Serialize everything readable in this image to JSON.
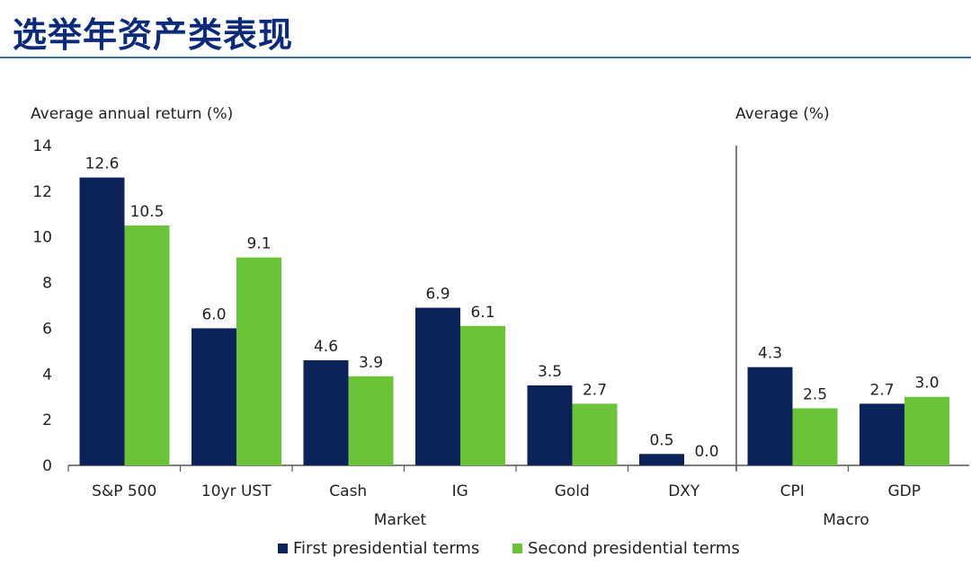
{
  "page": {
    "title": "选举年资产类表现"
  },
  "colors": {
    "first": "#0b2358",
    "second": "#6cc33a",
    "title": "#0b2a7a",
    "rule": "#3d6fb3",
    "axis": "#555555"
  },
  "chart_data": {
    "type": "bar",
    "legend": {
      "placement": "bottom-center"
    },
    "series": [
      {
        "name": "First presidential terms",
        "color": "#0b2358"
      },
      {
        "name": "Second presidential terms",
        "color": "#6cc33a"
      }
    ],
    "panels": [
      {
        "ylabel": "Average annual return (%)",
        "xlabel": "Market",
        "categories": [
          "S&P 500",
          "10yr UST",
          "Cash",
          "IG",
          "Gold",
          "DXY"
        ],
        "first": [
          12.6,
          6.0,
          4.6,
          6.9,
          3.5,
          0.5
        ],
        "second": [
          10.5,
          9.1,
          3.9,
          6.1,
          2.7,
          0.0
        ]
      },
      {
        "ylabel": "Average (%)",
        "xlabel": "Macro",
        "categories": [
          "CPI",
          "GDP"
        ],
        "first": [
          4.3,
          2.7
        ],
        "second": [
          2.5,
          3.0
        ]
      }
    ],
    "ylim": [
      0,
      14
    ],
    "yticks": [
      0,
      2,
      4,
      6,
      8,
      10,
      12,
      14
    ],
    "grid": false,
    "value_labels": true
  }
}
